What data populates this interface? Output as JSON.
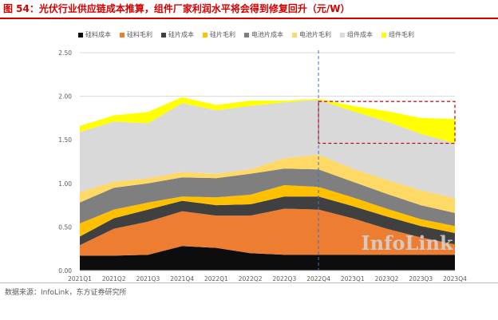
{
  "figure_title": "图 54：光伏行业供应链成本推算，组件厂家利润水平将会得到修复回升（元/W）",
  "source_note": "数据来源：InfoLink，东方证券研究所",
  "watermark": "InfoLink",
  "colors": {
    "title": "#d40000",
    "axis_text": "#595959",
    "grid": "#d9d9d9",
    "divider_line": "#4472c4",
    "highlight_box": "#c00000",
    "watermark": "#d6d6d6"
  },
  "chart_data": {
    "type": "area",
    "stacked": true,
    "title": "",
    "xlabel": "",
    "ylabel": "",
    "categories": [
      "2021Q1",
      "2021Q2",
      "2021Q3",
      "2021Q4",
      "2022Q1",
      "2022Q2",
      "2022Q3",
      "2022Q4",
      "2023Q1",
      "2023Q2",
      "2023Q3",
      "2023Q4"
    ],
    "ylim": [
      0,
      2.5
    ],
    "yticks": [
      "0.00",
      "0.50",
      "1.00",
      "1.50",
      "2.00",
      "2.50"
    ],
    "grid": true,
    "legend_position": "top",
    "series": [
      {
        "name": "硅料成本",
        "color": "#0d0d0d",
        "values": [
          0.17,
          0.17,
          0.18,
          0.28,
          0.26,
          0.2,
          0.18,
          0.18,
          0.18,
          0.18,
          0.18,
          0.18
        ]
      },
      {
        "name": "硅料毛利",
        "color": "#ed7d31",
        "values": [
          0.12,
          0.31,
          0.38,
          0.4,
          0.37,
          0.43,
          0.53,
          0.52,
          0.42,
          0.3,
          0.2,
          0.12
        ]
      },
      {
        "name": "硅片成本",
        "color": "#404040",
        "values": [
          0.1,
          0.12,
          0.14,
          0.12,
          0.12,
          0.13,
          0.14,
          0.15,
          0.14,
          0.14,
          0.13,
          0.13
        ]
      },
      {
        "name": "硅片毛利",
        "color": "#ffc000",
        "values": [
          0.15,
          0.1,
          0.08,
          0.05,
          0.09,
          0.11,
          0.13,
          0.11,
          0.1,
          0.09,
          0.08,
          0.08
        ]
      },
      {
        "name": "电池片成本",
        "color": "#7f7f7f",
        "values": [
          0.24,
          0.25,
          0.22,
          0.22,
          0.22,
          0.24,
          0.19,
          0.2,
          0.18,
          0.17,
          0.16,
          0.15
        ]
      },
      {
        "name": "电池片毛利",
        "color": "#ffd966",
        "values": [
          0.12,
          0.07,
          0.06,
          0.06,
          0.05,
          0.05,
          0.12,
          0.17,
          0.15,
          0.16,
          0.17,
          0.17
        ]
      },
      {
        "name": "组件成本",
        "color": "#d9d9d9",
        "values": [
          0.69,
          0.69,
          0.63,
          0.79,
          0.73,
          0.73,
          0.64,
          0.63,
          0.66,
          0.67,
          0.65,
          0.63
        ]
      },
      {
        "name": "组件毛利",
        "color": "#ffff00",
        "values": [
          0.07,
          0.07,
          0.13,
          0.07,
          0.06,
          0.06,
          0.02,
          0.01,
          0.06,
          0.12,
          0.18,
          0.28
        ]
      }
    ],
    "annotations": [
      {
        "type": "vertical-dashed-line",
        "at_category": "2022Q4"
      },
      {
        "type": "dashed-box",
        "from_category": "2022Q4",
        "to_category": "2023Q4",
        "y_range": [
          1.46,
          1.94
        ]
      }
    ]
  }
}
